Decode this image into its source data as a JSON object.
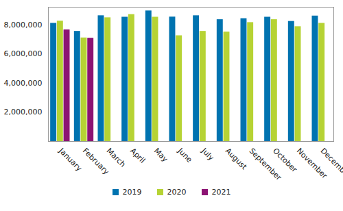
{
  "chart_data": {
    "type": "bar",
    "categories": [
      "January",
      "February",
      "March",
      "April",
      "May",
      "June",
      "July",
      "August",
      "September",
      "October",
      "November",
      "December"
    ],
    "series": [
      {
        "name": "2019",
        "color": "#0073b0",
        "values": [
          8100000,
          7550000,
          8620000,
          8520000,
          8950000,
          8530000,
          8620000,
          8350000,
          8420000,
          8520000,
          8230000,
          8600000
        ]
      },
      {
        "name": "2020",
        "color": "#b6d334",
        "values": [
          8250000,
          7100000,
          8480000,
          8700000,
          8520000,
          7250000,
          7550000,
          7500000,
          8150000,
          8350000,
          7870000,
          8100000
        ]
      },
      {
        "name": "2021",
        "color": "#8c1373",
        "values": [
          7650000,
          7080000,
          null,
          null,
          null,
          null,
          null,
          null,
          null,
          null,
          null,
          null
        ]
      }
    ],
    "ylim": [
      0,
      9200000
    ],
    "yticks": [
      {
        "value": 2000000,
        "label": "2,000,000"
      },
      {
        "value": 4000000,
        "label": "4,000,000"
      },
      {
        "value": 6000000,
        "label": "6,000,000"
      },
      {
        "value": 8000000,
        "label": "8,000,000"
      }
    ],
    "grid": false,
    "legend": "bottom"
  }
}
